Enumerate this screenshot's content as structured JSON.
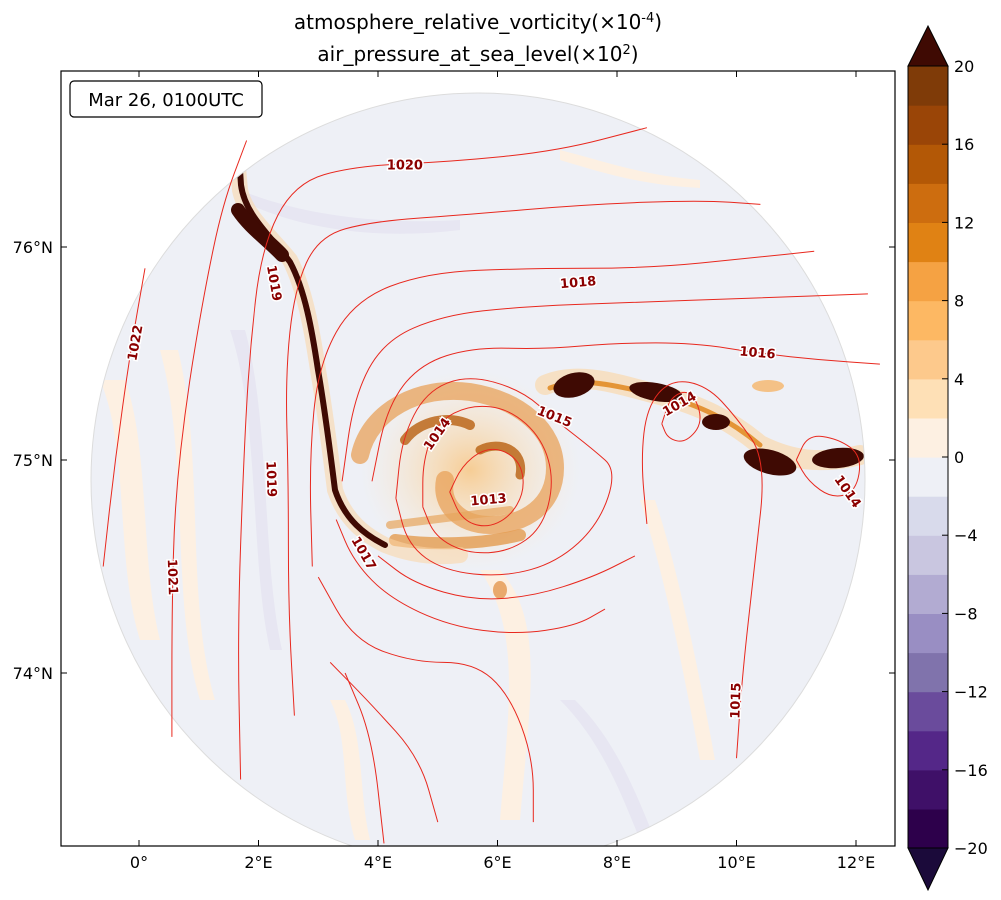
{
  "chart_data": {
    "type": "contour-map",
    "title": {
      "line1": {
        "text": "atmosphere_relative_vorticity(×10",
        "sup": "-4",
        "tail": ")"
      },
      "line2": {
        "text": "air_pressure_at_sea_level(×10",
        "sup": "2",
        "tail": ")"
      }
    },
    "time_label": "Mar 26, 0100UTC",
    "lon_range": [
      -1.3,
      12.6
    ],
    "lat_range": [
      73.2,
      76.8
    ],
    "x_ticks": [
      {
        "lon": 0,
        "label": "0°"
      },
      {
        "lon": 2,
        "label": "2°E"
      },
      {
        "lon": 4,
        "label": "4°E"
      },
      {
        "lon": 6,
        "label": "6°E"
      },
      {
        "lon": 8,
        "label": "8°E"
      },
      {
        "lon": 10,
        "label": "10°E"
      },
      {
        "lon": 12,
        "label": "12°E"
      }
    ],
    "y_ticks": [
      {
        "lat": 76,
        "label": "76°N"
      },
      {
        "lat": 75,
        "label": "75°N"
      },
      {
        "lat": 74,
        "label": "74°N"
      }
    ],
    "pressure_contour_labels": [
      {
        "value": "1013",
        "lon": 5.85,
        "lat": 74.81,
        "angle": -5
      },
      {
        "value": "1014",
        "lon": 5.0,
        "lat": 75.12,
        "angle": -55
      },
      {
        "value": "1015",
        "lon": 6.95,
        "lat": 75.2,
        "angle": 22
      },
      {
        "value": "1014",
        "lon": 9.05,
        "lat": 75.26,
        "angle": -30
      },
      {
        "value": "1014",
        "lon": 11.85,
        "lat": 74.85,
        "angle": 55
      },
      {
        "value": "1016",
        "lon": 10.35,
        "lat": 75.5,
        "angle": 5
      },
      {
        "value": "1018",
        "lon": 7.35,
        "lat": 75.83,
        "angle": -5
      },
      {
        "value": "1020",
        "lon": 4.45,
        "lat": 76.38,
        "angle": 0
      },
      {
        "value": "1019",
        "lon": 2.25,
        "lat": 75.83,
        "angle": 80
      },
      {
        "value": "1019",
        "lon": 2.2,
        "lat": 74.91,
        "angle": 88
      },
      {
        "value": "1017",
        "lon": 3.75,
        "lat": 74.56,
        "angle": 60
      },
      {
        "value": "1021",
        "lon": 0.55,
        "lat": 74.45,
        "angle": 88
      },
      {
        "value": "1022",
        "lon": -0.05,
        "lat": 75.55,
        "angle": -80
      },
      {
        "value": "1015",
        "lon": 10.0,
        "lat": 73.87,
        "angle": -88
      }
    ],
    "pressure_isobars": [
      {
        "value": 1013,
        "lonlat": [
          [
            5.2,
            74.85
          ],
          [
            5.4,
            74.97
          ],
          [
            5.75,
            75.05
          ],
          [
            6.1,
            75.05
          ],
          [
            6.4,
            74.98
          ],
          [
            6.45,
            74.85
          ],
          [
            6.2,
            74.73
          ],
          [
            5.8,
            74.68
          ],
          [
            5.4,
            74.72
          ],
          [
            5.2,
            74.85
          ]
        ]
      },
      {
        "value": 1014,
        "lonlat": [
          [
            4.75,
            74.78
          ],
          [
            4.75,
            75.0
          ],
          [
            5.0,
            75.18
          ],
          [
            5.55,
            75.26
          ],
          [
            6.2,
            75.24
          ],
          [
            6.75,
            75.1
          ],
          [
            6.95,
            74.9
          ],
          [
            6.75,
            74.68
          ],
          [
            6.2,
            74.57
          ],
          [
            5.5,
            74.56
          ],
          [
            4.95,
            74.64
          ],
          [
            4.75,
            74.78
          ]
        ]
      },
      {
        "value": 1015,
        "lonlat": [
          [
            4.3,
            74.82
          ],
          [
            4.4,
            75.1
          ],
          [
            4.8,
            75.32
          ],
          [
            5.5,
            75.4
          ],
          [
            6.4,
            75.33
          ],
          [
            7.0,
            75.18
          ],
          [
            7.6,
            75.05
          ],
          [
            8.0,
            74.95
          ],
          [
            7.7,
            74.7
          ],
          [
            7.0,
            74.52
          ],
          [
            6.1,
            74.45
          ],
          [
            5.1,
            74.48
          ],
          [
            4.5,
            74.6
          ],
          [
            4.3,
            74.82
          ]
        ]
      },
      {
        "value": 1015,
        "lonlat": [
          [
            8.5,
            74.7
          ],
          [
            8.4,
            75.0
          ],
          [
            8.5,
            75.25
          ],
          [
            8.9,
            75.38
          ],
          [
            9.5,
            75.35
          ],
          [
            10.0,
            75.2
          ],
          [
            10.5,
            75.0
          ],
          [
            10.3,
            74.5
          ],
          [
            10.1,
            74.0
          ],
          [
            10.0,
            73.6
          ]
        ]
      },
      {
        "value": 1014,
        "lonlat": [
          [
            8.75,
            75.17
          ],
          [
            8.9,
            75.3
          ],
          [
            9.25,
            75.33
          ],
          [
            9.45,
            75.18
          ],
          [
            9.15,
            75.08
          ],
          [
            8.85,
            75.1
          ],
          [
            8.75,
            75.17
          ]
        ]
      },
      {
        "value": 1014,
        "lonlat": [
          [
            11.0,
            75.0
          ],
          [
            11.2,
            75.12
          ],
          [
            11.7,
            75.1
          ],
          [
            12.1,
            75.02
          ],
          [
            12.0,
            74.85
          ],
          [
            11.6,
            74.82
          ],
          [
            11.2,
            74.9
          ],
          [
            11.0,
            75.0
          ]
        ]
      },
      {
        "value": 1016,
        "lonlat": [
          [
            3.9,
            74.9
          ],
          [
            4.15,
            75.25
          ],
          [
            4.7,
            75.45
          ],
          [
            5.6,
            75.53
          ],
          [
            6.8,
            75.52
          ],
          [
            8.0,
            75.55
          ],
          [
            9.3,
            75.55
          ],
          [
            10.4,
            75.5
          ],
          [
            11.4,
            75.47
          ],
          [
            12.4,
            75.45
          ]
        ]
      },
      {
        "value": 1016,
        "lonlat": [
          [
            4.0,
            74.55
          ],
          [
            4.6,
            74.42
          ],
          [
            5.6,
            74.34
          ],
          [
            6.6,
            74.36
          ],
          [
            7.6,
            74.45
          ],
          [
            8.3,
            74.55
          ]
        ]
      },
      {
        "value": 1017,
        "lonlat": [
          [
            3.4,
            74.9
          ],
          [
            3.6,
            75.3
          ],
          [
            4.1,
            75.56
          ],
          [
            5.1,
            75.68
          ],
          [
            6.4,
            75.72
          ],
          [
            8.2,
            75.74
          ],
          [
            10.3,
            75.76
          ],
          [
            12.2,
            75.78
          ]
        ]
      },
      {
        "value": 1017,
        "lonlat": [
          [
            3.3,
            74.72
          ],
          [
            3.6,
            74.52
          ],
          [
            4.2,
            74.35
          ],
          [
            5.2,
            74.22
          ],
          [
            6.3,
            74.18
          ],
          [
            7.3,
            74.22
          ],
          [
            7.8,
            74.3
          ]
        ]
      },
      {
        "value": 1018,
        "lonlat": [
          [
            2.9,
            74.5
          ],
          [
            2.85,
            75.0
          ],
          [
            3.0,
            75.45
          ],
          [
            3.6,
            75.75
          ],
          [
            4.8,
            75.88
          ],
          [
            6.5,
            75.9
          ],
          [
            8.5,
            75.9
          ],
          [
            10.3,
            75.95
          ],
          [
            11.3,
            75.98
          ]
        ]
      },
      {
        "value": 1018,
        "lonlat": [
          [
            3.0,
            74.45
          ],
          [
            3.6,
            74.15
          ],
          [
            4.6,
            74.05
          ],
          [
            5.6,
            74.05
          ],
          [
            6.2,
            73.9
          ],
          [
            6.6,
            73.6
          ],
          [
            6.6,
            73.3
          ]
        ]
      },
      {
        "value": 1019,
        "lonlat": [
          [
            2.6,
            73.8
          ],
          [
            2.5,
            74.3
          ],
          [
            2.5,
            74.9
          ],
          [
            2.45,
            75.4
          ],
          [
            2.6,
            75.8
          ],
          [
            3.0,
            76.05
          ],
          [
            3.9,
            76.12
          ],
          [
            5.4,
            76.15
          ],
          [
            7.5,
            76.2
          ],
          [
            9.4,
            76.22
          ],
          [
            10.4,
            76.2
          ]
        ]
      },
      {
        "value": 1019,
        "lonlat": [
          [
            3.2,
            74.05
          ],
          [
            3.9,
            73.85
          ],
          [
            4.7,
            73.6
          ],
          [
            5.0,
            73.3
          ]
        ]
      },
      {
        "value": 1020,
        "lonlat": [
          [
            1.7,
            73.5
          ],
          [
            1.65,
            74.2
          ],
          [
            1.75,
            75.0
          ],
          [
            1.85,
            75.5
          ],
          [
            2.05,
            76.0
          ],
          [
            2.6,
            76.3
          ],
          [
            3.6,
            76.38
          ],
          [
            5.2,
            76.4
          ],
          [
            7.0,
            76.45
          ],
          [
            8.5,
            76.56
          ]
        ]
      },
      {
        "value": 1020,
        "lonlat": [
          [
            4.1,
            73.2
          ],
          [
            3.9,
            73.7
          ],
          [
            3.45,
            74.0
          ]
        ]
      },
      {
        "value": 1021,
        "lonlat": [
          [
            0.55,
            73.7
          ],
          [
            0.55,
            74.3
          ],
          [
            0.6,
            74.8
          ],
          [
            0.8,
            75.3
          ],
          [
            1.1,
            75.8
          ],
          [
            1.4,
            76.2
          ],
          [
            1.8,
            76.5
          ]
        ]
      },
      {
        "value": 1022,
        "lonlat": [
          [
            -0.6,
            74.5
          ],
          [
            -0.4,
            75.0
          ],
          [
            -0.15,
            75.5
          ],
          [
            0.1,
            75.9
          ]
        ]
      }
    ],
    "vorticity_scale": {
      "levels": [
        -20,
        -18,
        -16,
        -14,
        -12,
        -10,
        -8,
        -6,
        -4,
        -2,
        0,
        2,
        4,
        6,
        8,
        10,
        12,
        14,
        16,
        18,
        20
      ],
      "tick_labels": [
        "−20",
        "−16",
        "−12",
        "−8",
        "−4",
        "0",
        "4",
        "8",
        "12",
        "16",
        "20"
      ],
      "tick_values": [
        -20,
        -16,
        -12,
        -8,
        -4,
        0,
        4,
        8,
        12,
        16,
        20
      ],
      "colors": [
        "#2d004b",
        "#3f1068",
        "#542788",
        "#6a4b9c",
        "#8073ac",
        "#998ec3",
        "#b2abd2",
        "#c9c6e0",
        "#d8daeb",
        "#eef0f6",
        "#fdf0e2",
        "#fee0b6",
        "#fdc98c",
        "#fdb863",
        "#f5a243",
        "#e08214",
        "#cd6d0f",
        "#b35806",
        "#9a4507",
        "#7f3b08"
      ],
      "under_color": "#1b0a3a",
      "over_color": "#3f0a03",
      "cmap": "PuOr_r"
    }
  }
}
